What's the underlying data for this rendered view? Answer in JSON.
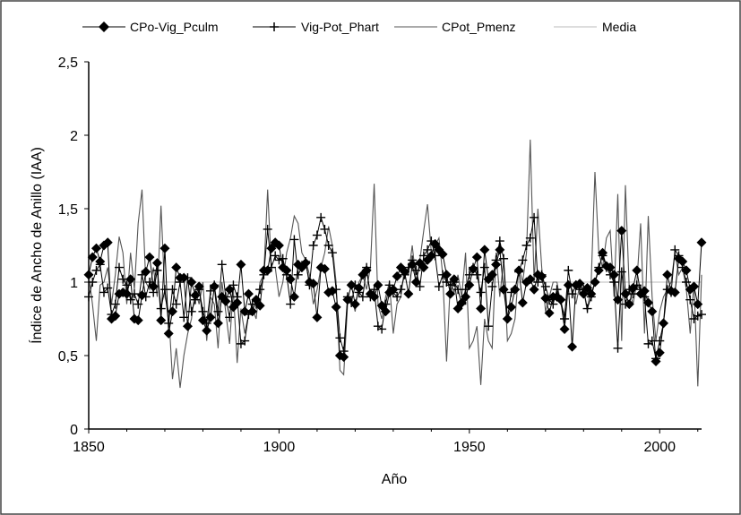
{
  "chart_data": {
    "type": "line",
    "title": "",
    "xlabel": "Año",
    "ylabel": "Índice de Ancho de Anillo (IAA)",
    "xlim": [
      1850,
      2011
    ],
    "ylim": [
      0,
      2.5
    ],
    "x_ticks": [
      "1850",
      "1900",
      "1950",
      "2000"
    ],
    "y_ticks": [
      "0",
      "0,5",
      "1",
      "1,5",
      "2",
      "2,5"
    ],
    "grid": false,
    "legend_position": "top",
    "x_start": 1850,
    "series": [
      {
        "name": "CPo-Vig_Pculm",
        "marker": "diamond",
        "color": "#000000",
        "values": [
          1.05,
          1.17,
          1.23,
          1.14,
          1.25,
          1.27,
          0.75,
          0.77,
          0.92,
          0.93,
          0.92,
          1.02,
          0.75,
          0.74,
          0.91,
          1.07,
          1.17,
          0.97,
          1.13,
          0.74,
          1.23,
          0.65,
          0.8,
          1.1,
          1.03,
          1.03,
          0.7,
          1.0,
          0.91,
          0.97,
          0.74,
          0.67,
          0.76,
          0.97,
          0.72,
          0.9,
          0.87,
          0.95,
          0.83,
          0.86,
          1.12,
          0.8,
          0.92,
          0.8,
          0.88,
          0.84,
          1.08,
          1.08,
          1.23,
          1.27,
          1.25,
          1.1,
          1.08,
          1.02,
          0.9,
          1.12,
          1.1,
          1.13,
          1.0,
          0.99,
          0.76,
          1.1,
          1.09,
          0.93,
          0.94,
          0.83,
          0.5,
          0.49,
          0.88,
          0.98,
          0.85,
          0.96,
          1.05,
          1.08,
          0.92,
          0.9,
          0.98,
          0.84,
          0.8,
          0.93,
          0.95,
          1.04,
          1.1,
          1.07,
          0.92,
          1.12,
          1.0,
          1.13,
          1.1,
          1.15,
          1.18,
          1.26,
          1.22,
          1.19,
          1.05,
          0.92,
          1.02,
          0.82,
          0.86,
          0.9,
          0.98,
          1.09,
          1.17,
          0.82,
          1.22,
          1.02,
          1.05,
          1.12,
          1.22,
          0.95,
          0.75,
          0.83,
          0.95,
          1.08,
          0.86,
          1.0,
          1.02,
          0.95,
          1.05,
          1.04,
          0.89,
          0.79,
          0.9,
          0.9,
          0.88,
          0.68,
          0.98,
          0.56,
          0.98,
          0.99,
          0.92,
          0.96,
          0.92,
          1.0,
          1.08,
          1.2,
          1.11,
          1.1,
          1.05,
          0.88,
          1.35,
          0.92,
          0.85,
          0.96,
          1.08,
          0.92,
          0.94,
          0.86,
          0.8,
          0.46,
          0.52,
          0.72,
          1.05,
          0.94,
          0.93,
          1.16,
          1.14,
          1.08,
          0.95,
          0.97,
          0.85,
          1.27
        ]
      },
      {
        "name": "Vig-Pot_Phart",
        "marker": "plus",
        "color": "#000000",
        "values": [
          0.9,
          1.0,
          1.08,
          1.12,
          0.93,
          0.96,
          0.78,
          0.85,
          1.1,
          1.02,
          0.98,
          0.88,
          0.92,
          0.85,
          1.05,
          0.9,
          1.0,
          0.93,
          1.08,
          0.82,
          0.95,
          0.72,
          0.95,
          0.85,
          1.0,
          0.76,
          1.03,
          0.8,
          0.88,
          0.95,
          0.8,
          0.72,
          0.94,
          0.98,
          0.8,
          1.12,
          0.9,
          0.76,
          0.98,
          0.9,
          0.58,
          0.6,
          0.78,
          0.85,
          0.85,
          0.95,
          1.05,
          1.36,
          1.1,
          1.18,
          1.15,
          1.16,
          1.05,
          0.85,
          1.29,
          1.05,
          1.1,
          1.14,
          0.98,
          1.25,
          1.32,
          1.44,
          1.36,
          1.25,
          1.2,
          0.95,
          0.62,
          0.53,
          0.9,
          0.86,
          0.98,
          0.93,
          0.9,
          1.1,
          0.9,
          0.95,
          0.7,
          0.68,
          0.85,
          0.98,
          0.93,
          0.9,
          0.95,
          1.05,
          1.1,
          1.15,
          1.08,
          0.97,
          1.18,
          1.22,
          1.28,
          1.18,
          0.97,
          1.05,
          1.0,
          0.98,
          1.0,
          0.95,
          0.85,
          0.95,
          1.05,
          1.1,
          1.05,
          0.93,
          1.1,
          0.7,
          0.97,
          1.15,
          1.28,
          1.16,
          0.75,
          0.93,
          0.95,
          1.07,
          1.15,
          1.25,
          1.3,
          1.44,
          1.0,
          1.05,
          0.97,
          0.88,
          0.85,
          0.95,
          0.88,
          0.75,
          1.08,
          0.92,
          0.98,
          0.95,
          0.95,
          0.82,
          0.9,
          1.0,
          1.1,
          1.18,
          1.1,
          1.05,
          1.0,
          0.55,
          1.07,
          0.85,
          0.95,
          0.92,
          0.98,
          0.95,
          0.9,
          0.58,
          0.6,
          0.48,
          0.6,
          0.72,
          0.95,
          0.93,
          1.22,
          1.18,
          1.1,
          1.0,
          0.88,
          0.75,
          0.77,
          0.78
        ]
      },
      {
        "name": "CPot_Pmenz",
        "marker": "none",
        "color": "#555555",
        "values": [
          1.05,
          0.85,
          0.6,
          0.98,
          1.0,
          1.1,
          0.85,
          1.05,
          1.31,
          1.2,
          0.85,
          1.2,
          0.95,
          1.4,
          1.63,
          1.0,
          0.95,
          1.1,
          0.9,
          1.52,
          0.9,
          0.8,
          0.34,
          0.55,
          0.28,
          0.5,
          0.65,
          0.75,
          0.95,
          0.85,
          1.0,
          0.6,
          0.9,
          0.85,
          0.55,
          1.0,
          0.8,
          0.58,
          0.95,
          0.45,
          0.82,
          0.65,
          0.78,
          0.82,
          0.75,
          1.0,
          1.05,
          1.63,
          1.1,
          1.1,
          0.9,
          1.0,
          1.2,
          1.3,
          1.45,
          1.4,
          1.2,
          1.15,
          1.05,
          0.85,
          0.95,
          1.1,
          1.2,
          1.38,
          1.25,
          1.0,
          0.4,
          0.37,
          0.85,
          0.9,
          0.8,
          1.0,
          1.05,
          0.95,
          1.1,
          1.67,
          0.85,
          0.75,
          0.9,
          1.0,
          0.65,
          0.85,
          0.9,
          1.1,
          1.05,
          1.25,
          1.0,
          1.15,
          1.35,
          1.53,
          1.2,
          1.25,
          1.3,
          1.05,
          0.46,
          1.0,
          0.93,
          1.05,
          0.9,
          1.2,
          0.55,
          0.6,
          0.7,
          0.3,
          0.75,
          0.6,
          0.55,
          1.2,
          0.9,
          1.15,
          0.6,
          0.65,
          0.75,
          1.1,
          1.0,
          1.2,
          1.97,
          1.0,
          1.5,
          1.1,
          0.8,
          0.9,
          1.0,
          1.0,
          0.85,
          0.78,
          1.0,
          0.95,
          0.85,
          0.98,
          0.95,
          0.8,
          1.0,
          1.75,
          1.2,
          1.1,
          1.3,
          1.35,
          0.9,
          1.6,
          0.6,
          1.66,
          0.95,
          0.85,
          1.0,
          1.4,
          0.65,
          1.45,
          0.9,
          0.6,
          0.8,
          0.9,
          0.95,
          1.0,
          1.2,
          1.05,
          1.1,
          0.95,
          0.65,
          1.0,
          0.29,
          1.05
        ]
      },
      {
        "name": "Media",
        "marker": "none",
        "color": "#bbbbbb",
        "value": 1
      }
    ]
  }
}
